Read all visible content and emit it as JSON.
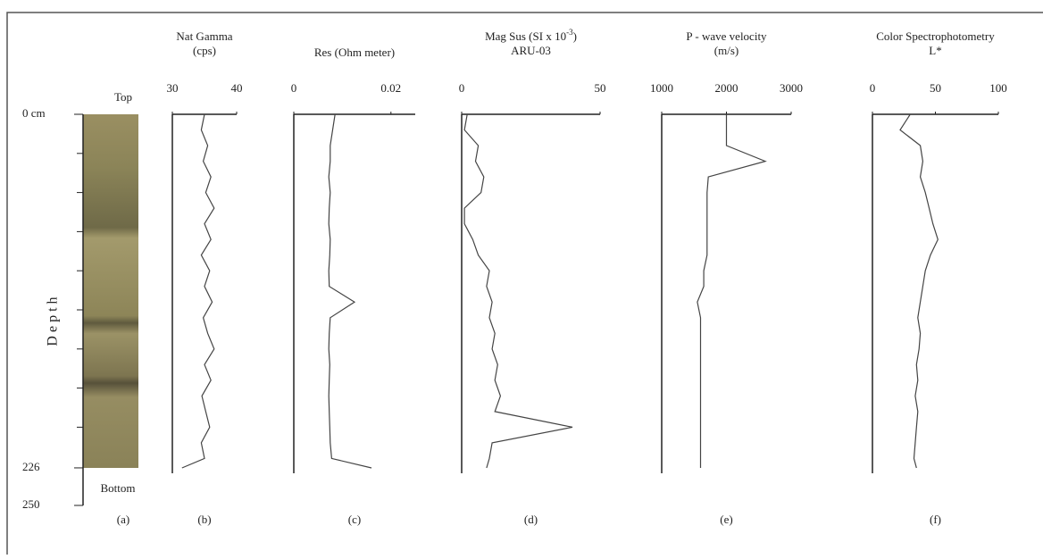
{
  "depth_axis": {
    "xlim": [
      0,
      250
    ],
    "xticks": [
      {
        "value": 0,
        "label": "0 cm"
      },
      226,
      250
    ],
    "minor_ticks": [
      25,
      50,
      75,
      100,
      125,
      150,
      175,
      200
    ],
    "label": "D e p t h"
  },
  "core": {
    "top_label": "Top",
    "bottom_label": "Bottom",
    "caption": "(a)"
  },
  "chart_data": [
    {
      "type": "line",
      "title": "Nat Gamma",
      "subtitle": "(cps)",
      "caption": "(b)",
      "x": [
        0,
        10,
        20,
        30,
        40,
        50,
        60,
        70,
        80,
        90,
        100,
        110,
        120,
        130,
        140,
        150,
        160,
        170,
        180,
        190,
        200,
        210,
        220,
        226
      ],
      "values": [
        35,
        34.5,
        35.5,
        34.8,
        36,
        35.2,
        36.5,
        35,
        36,
        34.5,
        35.8,
        35,
        36.2,
        34.8,
        35.5,
        36.5,
        35,
        36,
        34.6,
        35.2,
        35.8,
        34.5,
        35,
        31.5
      ],
      "ylim": [
        30,
        40
      ],
      "yticks": [
        30,
        40
      ]
    },
    {
      "type": "line",
      "title": "Res (Ohm meter)",
      "caption": "(c)",
      "x": [
        0,
        10,
        20,
        30,
        40,
        50,
        60,
        70,
        80,
        90,
        100,
        110,
        120,
        130,
        140,
        150,
        160,
        170,
        180,
        190,
        200,
        210,
        220,
        226
      ],
      "values": [
        0.0085,
        0.008,
        0.0075,
        0.0075,
        0.0072,
        0.0075,
        0.0073,
        0.0072,
        0.0075,
        0.0074,
        0.0072,
        0.0073,
        0.0125,
        0.0075,
        0.0073,
        0.0072,
        0.0074,
        0.0073,
        0.0072,
        0.0073,
        0.0074,
        0.0075,
        0.0078,
        0.016
      ],
      "ylim": [
        0,
        0.025
      ],
      "yticks": [
        0,
        0.02
      ]
    },
    {
      "type": "line",
      "title": "Mag Sus (SI x 10",
      "title_exponent": "-3",
      "title_end": ")",
      "subtitle": "ARU-03",
      "caption": "(d)",
      "x": [
        0,
        10,
        20,
        30,
        40,
        50,
        60,
        70,
        80,
        90,
        100,
        110,
        120,
        130,
        140,
        150,
        160,
        170,
        180,
        190,
        200,
        210,
        220,
        226
      ],
      "values": [
        2,
        1,
        6,
        5,
        8,
        7,
        1,
        1,
        4,
        6,
        10,
        9,
        11,
        10,
        12,
        11,
        13,
        12,
        14,
        12,
        40,
        11,
        10,
        9
      ],
      "ylim": [
        0,
        50
      ],
      "yticks": [
        0,
        50
      ]
    },
    {
      "type": "line",
      "title": "P - wave velocity",
      "subtitle": "(m/s)",
      "caption": "(e)",
      "x": [
        0,
        10,
        20,
        30,
        40,
        50,
        60,
        70,
        80,
        90,
        100,
        110,
        120,
        130,
        140,
        150,
        160,
        170,
        180,
        190,
        200,
        210,
        220,
        226
      ],
      "values": [
        2000,
        2000,
        2000,
        2600,
        1720,
        1700,
        1700,
        1700,
        1700,
        1700,
        1650,
        1650,
        1550,
        1600,
        1600,
        1600,
        1600,
        1600,
        1600,
        1600,
        1600,
        1600,
        1600,
        1600
      ],
      "ylim": [
        1000,
        3000
      ],
      "yticks": [
        1000,
        2000,
        3000
      ]
    },
    {
      "type": "line",
      "title": "Color Spectrophotometry",
      "subtitle": "L*",
      "caption": "(f)",
      "x": [
        0,
        10,
        20,
        30,
        40,
        50,
        60,
        70,
        80,
        90,
        100,
        110,
        120,
        130,
        140,
        150,
        160,
        170,
        180,
        190,
        200,
        210,
        220,
        226
      ],
      "values": [
        30,
        22,
        38,
        40,
        38,
        42,
        45,
        48,
        52,
        46,
        42,
        40,
        38,
        36,
        38,
        37,
        35,
        36,
        34,
        36,
        35,
        34,
        33,
        35
      ],
      "ylim": [
        0,
        100
      ],
      "yticks": [
        0,
        50,
        100
      ]
    }
  ]
}
